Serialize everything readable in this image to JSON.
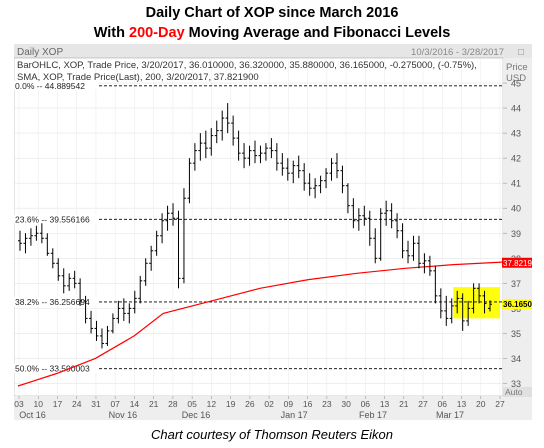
{
  "title_line1": "Daily Chart of XOP since March 2016",
  "title_line2_prefix": "With ",
  "title_line2_highlight": "200-Day",
  "title_line2_suffix": " Moving Average and Fibonacci Levels",
  "header": {
    "chart_name": "Daily XOP",
    "date_range": "10/3/2016 - 3/28/2017",
    "ohlc_line": "BarOHLC, XOP, Trade Price, 3/20/2017, 36.010000, 36.320000, 35.880000, 36.165000, -0.275000, (-0.75%),",
    "sma_line": "SMA, XOP, Trade Price(Last), 200, 3/20/2017, 37.821900",
    "price_label": "Price",
    "currency_label": "USD"
  },
  "footer": "Chart courtesy of Thomson Reuters Eikon",
  "colors": {
    "bars": "#000000",
    "sma": "#ff0000",
    "fib": "#000000",
    "highlight": "#ffff00",
    "last_price_box": "#ffff00",
    "sma_price_box": "#ff0000"
  },
  "chart_data": {
    "type": "ohlc",
    "ylim": [
      32.5,
      46
    ],
    "y_ticks": [
      33,
      34,
      35,
      36,
      37,
      38,
      39,
      40,
      41,
      42,
      43,
      44,
      45
    ],
    "x_date_labels": [
      "03",
      "10",
      "17",
      "24",
      "31",
      "07",
      "14",
      "21",
      "28",
      "05",
      "12",
      "19",
      "26",
      "02",
      "09",
      "16",
      "23",
      "30",
      "06",
      "13",
      "21",
      "27",
      "06",
      "13",
      "20",
      "27"
    ],
    "x_month_labels": [
      {
        "label": "Oct 16",
        "tick_index": 0.7
      },
      {
        "label": "Nov 16",
        "tick_index": 5.4
      },
      {
        "label": "Dec 16",
        "tick_index": 9.2
      },
      {
        "label": "Jan 17",
        "tick_index": 14.3
      },
      {
        "label": "Feb 17",
        "tick_index": 18.4
      },
      {
        "label": "Mar 17",
        "tick_index": 22.4
      }
    ],
    "fib_levels": [
      {
        "label": "0.0%",
        "value_label": "44.889542",
        "value": 44.889542
      },
      {
        "label": "23.6%",
        "value_label": "39.556166",
        "value": 39.556166
      },
      {
        "label": "38.2%",
        "value_label": "36.256694",
        "value": 36.256694
      },
      {
        "label": "50.0%",
        "value_label": "33.590003",
        "value": 33.590003
      }
    ],
    "last_price": 36.165,
    "last_price_label": "36.165000",
    "sma_last": 37.8219,
    "sma_last_label": "37.821900",
    "sma": {
      "name": "SMA 200",
      "points": [
        [
          0,
          32.9
        ],
        [
          4,
          33.4
        ],
        [
          8,
          34.0
        ],
        [
          12,
          34.9
        ],
        [
          15,
          35.8
        ],
        [
          20,
          36.3
        ],
        [
          25,
          36.8
        ],
        [
          30,
          37.15
        ],
        [
          35,
          37.4
        ],
        [
          40,
          37.6
        ],
        [
          45,
          37.75
        ],
        [
          50,
          37.85
        ]
      ]
    },
    "bars": [
      [
        38.7,
        39.1,
        38.3,
        38.6
      ],
      [
        38.6,
        39.0,
        38.2,
        38.8
      ],
      [
        38.8,
        39.2,
        38.5,
        38.9
      ],
      [
        38.9,
        39.3,
        38.7,
        39.0
      ],
      [
        39.0,
        39.4,
        38.6,
        38.8
      ],
      [
        38.8,
        39.0,
        38.1,
        38.2
      ],
      [
        38.2,
        38.4,
        37.6,
        37.8
      ],
      [
        37.8,
        38.0,
        37.1,
        37.3
      ],
      [
        37.3,
        37.6,
        36.6,
        36.9
      ],
      [
        36.9,
        37.4,
        36.7,
        37.2
      ],
      [
        37.2,
        37.5,
        36.8,
        37.0
      ],
      [
        37.0,
        37.2,
        36.1,
        36.3
      ],
      [
        36.3,
        36.5,
        35.4,
        35.6
      ],
      [
        35.6,
        35.9,
        35.0,
        35.2
      ],
      [
        35.2,
        35.5,
        34.7,
        34.9
      ],
      [
        34.9,
        35.2,
        34.4,
        34.6
      ],
      [
        34.6,
        35.3,
        34.5,
        35.1
      ],
      [
        35.1,
        35.8,
        35.0,
        35.6
      ],
      [
        35.6,
        36.3,
        35.4,
        36.0
      ],
      [
        36.0,
        36.4,
        35.5,
        35.8
      ],
      [
        35.8,
        36.2,
        35.4,
        36.0
      ],
      [
        36.0,
        36.7,
        35.8,
        36.4
      ],
      [
        36.4,
        37.3,
        36.2,
        37.1
      ],
      [
        37.1,
        38.0,
        36.9,
        37.8
      ],
      [
        37.8,
        38.5,
        37.5,
        38.3
      ],
      [
        38.3,
        39.1,
        38.1,
        38.9
      ],
      [
        38.9,
        39.8,
        38.6,
        39.5
      ],
      [
        39.5,
        40.1,
        39.1,
        39.8
      ],
      [
        39.8,
        40.2,
        39.3,
        39.6
      ],
      [
        39.6,
        39.9,
        36.8,
        37.2
      ],
      [
        37.2,
        40.8,
        37.0,
        40.4
      ],
      [
        40.4,
        42.0,
        40.2,
        41.8
      ],
      [
        41.8,
        42.6,
        41.5,
        42.3
      ],
      [
        42.3,
        43.0,
        41.9,
        42.6
      ],
      [
        42.6,
        43.1,
        42.0,
        42.4
      ],
      [
        42.4,
        43.2,
        42.1,
        42.9
      ],
      [
        42.9,
        43.5,
        42.6,
        43.1
      ],
      [
        43.1,
        43.9,
        42.7,
        43.6
      ],
      [
        43.6,
        44.2,
        43.0,
        43.4
      ],
      [
        43.4,
        43.7,
        42.5,
        42.8
      ],
      [
        42.8,
        43.1,
        41.9,
        42.2
      ],
      [
        42.2,
        42.6,
        41.6,
        42.0
      ],
      [
        42.0,
        42.5,
        41.7,
        42.3
      ],
      [
        42.3,
        42.7,
        41.8,
        42.1
      ],
      [
        42.1,
        42.5,
        41.8,
        42.2
      ],
      [
        42.2,
        42.6,
        41.9,
        42.4
      ],
      [
        42.4,
        42.8,
        42.0,
        42.3
      ],
      [
        42.3,
        42.6,
        41.5,
        41.8
      ],
      [
        41.8,
        42.2,
        41.3,
        41.6
      ],
      [
        41.6,
        42.0,
        41.1,
        41.4
      ],
      [
        41.4,
        41.9,
        41.0,
        41.7
      ],
      [
        41.7,
        42.1,
        41.2,
        41.5
      ],
      [
        41.5,
        41.8,
        40.7,
        41.0
      ],
      [
        41.0,
        41.4,
        40.5,
        40.8
      ],
      [
        40.8,
        41.2,
        40.4,
        40.9
      ],
      [
        40.9,
        41.3,
        40.6,
        41.1
      ],
      [
        41.1,
        41.6,
        40.8,
        41.4
      ],
      [
        41.4,
        42.0,
        41.1,
        41.8
      ],
      [
        41.8,
        42.2,
        41.2,
        41.5
      ],
      [
        41.5,
        41.7,
        40.6,
        40.9
      ],
      [
        40.9,
        41.0,
        39.8,
        40.1
      ],
      [
        40.1,
        40.4,
        39.2,
        39.5
      ],
      [
        39.5,
        40.0,
        39.1,
        39.7
      ],
      [
        39.7,
        40.1,
        39.3,
        39.6
      ],
      [
        39.6,
        39.9,
        38.5,
        38.8
      ],
      [
        38.8,
        39.2,
        37.8,
        38.0
      ],
      [
        38.0,
        40.0,
        37.9,
        39.8
      ],
      [
        39.8,
        40.3,
        39.3,
        39.9
      ],
      [
        39.9,
        40.2,
        39.2,
        39.5
      ],
      [
        39.5,
        39.8,
        38.8,
        39.1
      ],
      [
        39.1,
        39.4,
        38.0,
        38.3
      ],
      [
        38.3,
        38.7,
        37.8,
        38.1
      ],
      [
        38.1,
        38.9,
        37.9,
        38.6
      ],
      [
        38.6,
        38.9,
        37.6,
        37.8
      ],
      [
        37.8,
        38.2,
        37.4,
        37.9
      ],
      [
        37.9,
        38.1,
        37.3,
        37.5
      ],
      [
        37.5,
        37.7,
        36.2,
        36.5
      ],
      [
        36.5,
        36.8,
        35.6,
        35.9
      ],
      [
        35.9,
        36.5,
        35.3,
        35.6
      ],
      [
        35.6,
        36.4,
        35.4,
        36.1
      ],
      [
        36.1,
        36.7,
        35.8,
        36.4
      ],
      [
        36.4,
        36.6,
        35.1,
        35.5
      ],
      [
        35.5,
        36.3,
        35.3,
        36.0
      ],
      [
        36.0,
        37.0,
        35.8,
        36.8
      ],
      [
        36.8,
        37.0,
        36.2,
        36.5
      ],
      [
        36.5,
        36.7,
        35.8,
        36.2
      ],
      [
        36.0,
        36.32,
        35.88,
        36.165
      ]
    ]
  }
}
